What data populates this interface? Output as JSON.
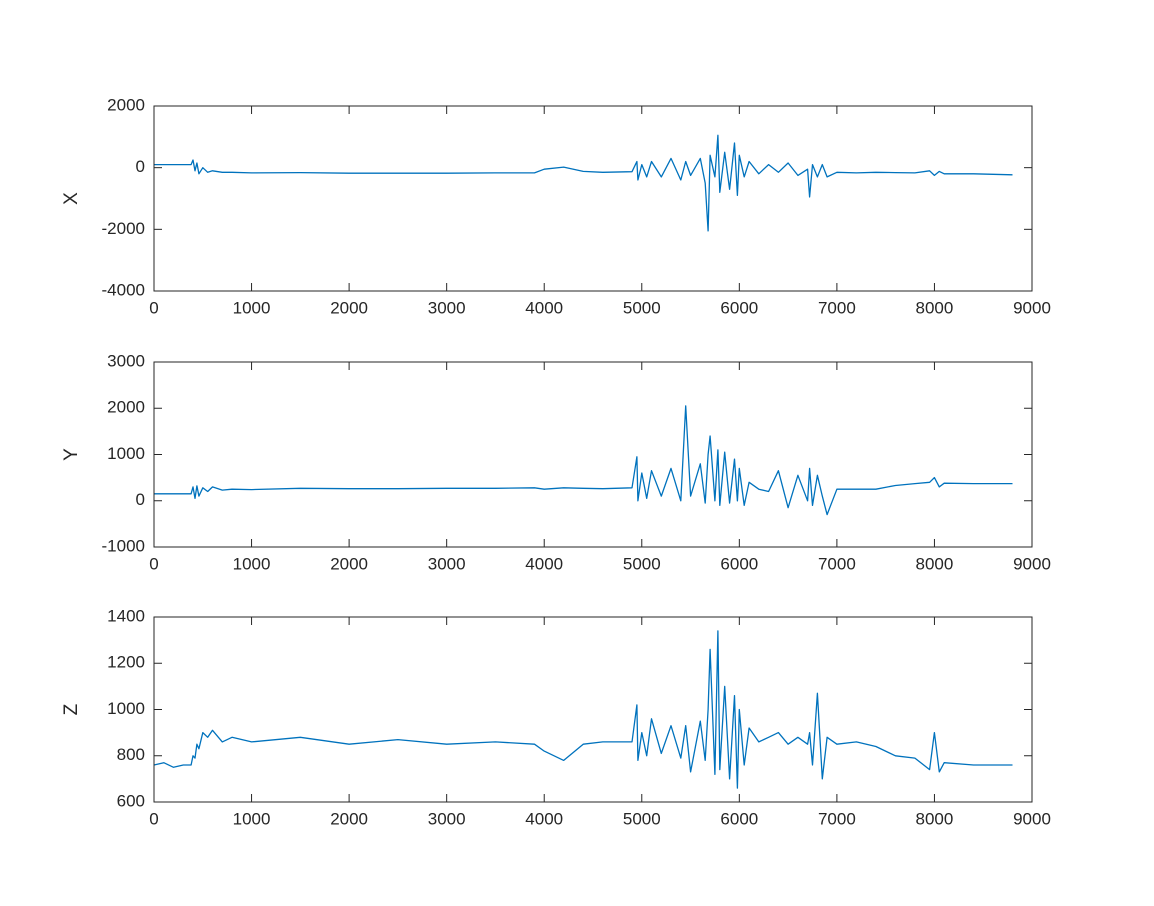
{
  "chart_data": [
    {
      "type": "line",
      "ylabel": "X",
      "color": "#0072bd",
      "x": [
        0,
        100,
        200,
        300,
        380,
        400,
        420,
        440,
        460,
        500,
        550,
        600,
        700,
        800,
        1000,
        1500,
        2000,
        2500,
        3000,
        3500,
        3900,
        4000,
        4200,
        4400,
        4600,
        4900,
        4950,
        4960,
        5000,
        5050,
        5100,
        5200,
        5300,
        5400,
        5450,
        5500,
        5600,
        5650,
        5680,
        5700,
        5750,
        5780,
        5800,
        5850,
        5900,
        5950,
        5980,
        6000,
        6050,
        6100,
        6200,
        6300,
        6400,
        6500,
        6600,
        6700,
        6720,
        6750,
        6800,
        6850,
        6900,
        7000,
        7200,
        7400,
        7600,
        7800,
        7950,
        8000,
        8050,
        8100,
        8400,
        8800
      ],
      "values": [
        100,
        100,
        100,
        100,
        100,
        250,
        -100,
        150,
        -200,
        0,
        -150,
        -100,
        -150,
        -150,
        -170,
        -160,
        -180,
        -180,
        -180,
        -170,
        -170,
        -50,
        20,
        -120,
        -150,
        -130,
        200,
        -400,
        100,
        -300,
        200,
        -300,
        300,
        -400,
        200,
        -250,
        300,
        -500,
        -2050,
        400,
        -300,
        1050,
        -800,
        500,
        -700,
        800,
        -900,
        400,
        -300,
        200,
        -200,
        100,
        -150,
        150,
        -250,
        -50,
        -950,
        100,
        -300,
        100,
        -300,
        -150,
        -170,
        -150,
        -160,
        -170,
        -100,
        -250,
        -120,
        -200,
        -200,
        -230
      ],
      "xlim": [
        0,
        9000
      ],
      "xticks": [
        0,
        1000,
        2000,
        3000,
        4000,
        5000,
        6000,
        7000,
        8000,
        9000
      ],
      "ylim": [
        -4000,
        2000
      ],
      "yticks": [
        -4000,
        -2000,
        0,
        2000
      ]
    },
    {
      "type": "line",
      "ylabel": "Y",
      "color": "#0072bd",
      "x": [
        0,
        100,
        200,
        300,
        380,
        400,
        420,
        440,
        460,
        500,
        550,
        600,
        700,
        800,
        1000,
        1500,
        2000,
        2500,
        3000,
        3500,
        3900,
        4000,
        4200,
        4400,
        4600,
        4900,
        4950,
        4960,
        5000,
        5050,
        5100,
        5200,
        5300,
        5400,
        5450,
        5500,
        5600,
        5650,
        5680,
        5700,
        5750,
        5780,
        5800,
        5850,
        5900,
        5950,
        5980,
        6000,
        6050,
        6100,
        6200,
        6300,
        6400,
        6500,
        6600,
        6700,
        6720,
        6750,
        6800,
        6850,
        6900,
        7000,
        7200,
        7400,
        7600,
        7800,
        7950,
        8000,
        8050,
        8100,
        8400,
        8800
      ],
      "values": [
        150,
        150,
        150,
        150,
        150,
        300,
        50,
        320,
        100,
        280,
        200,
        300,
        230,
        250,
        240,
        270,
        260,
        260,
        270,
        270,
        280,
        250,
        280,
        270,
        260,
        280,
        950,
        0,
        600,
        50,
        650,
        100,
        700,
        0,
        2050,
        100,
        800,
        -50,
        1000,
        1400,
        0,
        1100,
        -100,
        1050,
        -50,
        900,
        0,
        700,
        -100,
        400,
        250,
        200,
        650,
        -150,
        550,
        0,
        700,
        -100,
        550,
        100,
        -300,
        250,
        250,
        250,
        330,
        370,
        400,
        500,
        300,
        380,
        370,
        370
      ],
      "xlim": [
        0,
        9000
      ],
      "xticks": [
        0,
        1000,
        2000,
        3000,
        4000,
        5000,
        6000,
        7000,
        8000,
        9000
      ],
      "ylim": [
        -1000,
        3000
      ],
      "yticks": [
        -1000,
        0,
        1000,
        2000,
        3000
      ]
    },
    {
      "type": "line",
      "ylabel": "Z",
      "color": "#0072bd",
      "x": [
        0,
        100,
        200,
        300,
        380,
        400,
        420,
        440,
        460,
        500,
        550,
        600,
        700,
        800,
        1000,
        1500,
        2000,
        2500,
        3000,
        3500,
        3900,
        4000,
        4200,
        4400,
        4600,
        4900,
        4950,
        4960,
        5000,
        5050,
        5100,
        5200,
        5300,
        5400,
        5450,
        5500,
        5600,
        5650,
        5680,
        5700,
        5750,
        5780,
        5800,
        5850,
        5900,
        5950,
        5980,
        6000,
        6050,
        6100,
        6200,
        6300,
        6400,
        6500,
        6600,
        6700,
        6720,
        6750,
        6800,
        6850,
        6900,
        7000,
        7200,
        7400,
        7600,
        7800,
        7950,
        8000,
        8050,
        8100,
        8400,
        8800
      ],
      "values": [
        760,
        770,
        750,
        760,
        760,
        800,
        790,
        850,
        830,
        900,
        880,
        910,
        860,
        880,
        860,
        880,
        850,
        870,
        850,
        860,
        850,
        820,
        780,
        850,
        860,
        860,
        1020,
        780,
        900,
        800,
        960,
        810,
        930,
        790,
        930,
        730,
        950,
        780,
        1000,
        1260,
        720,
        1340,
        740,
        1100,
        700,
        1060,
        660,
        1000,
        760,
        920,
        860,
        880,
        900,
        850,
        880,
        850,
        900,
        760,
        1070,
        700,
        880,
        850,
        860,
        840,
        800,
        790,
        740,
        900,
        730,
        770,
        760,
        760
      ],
      "xlim": [
        0,
        9000
      ],
      "xticks": [
        0,
        1000,
        2000,
        3000,
        4000,
        5000,
        6000,
        7000,
        8000,
        9000
      ],
      "ylim": [
        600,
        1400
      ],
      "yticks": [
        600,
        800,
        1000,
        1200,
        1400
      ]
    }
  ]
}
